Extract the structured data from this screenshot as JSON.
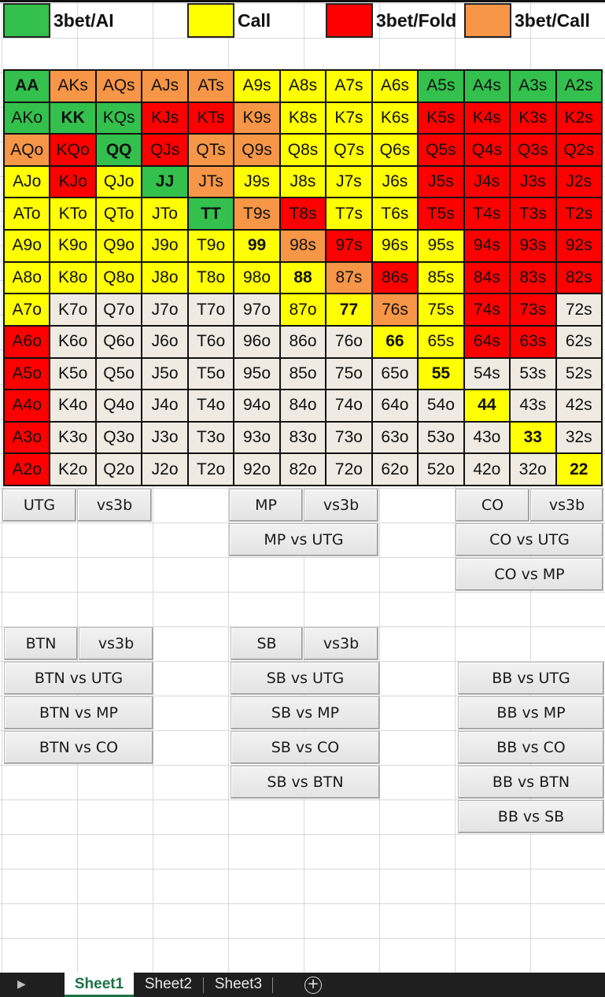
{
  "legend": [
    {
      "label": "3bet/AI",
      "color": "#33c04d"
    },
    {
      "label": "Call",
      "color": "#ffff00"
    },
    {
      "label": "3bet/Fold",
      "color": "#ff0000"
    },
    {
      "label": "3bet/Call",
      "color": "#f79646"
    }
  ],
  "colors": {
    "G": "#33c04d",
    "Y": "#ffff00",
    "R": "#ff0000",
    "O": "#f79646",
    "W": "#efebe2"
  },
  "grid": {
    "rows": [
      [
        "AA",
        "AKs",
        "AQs",
        "AJs",
        "ATs",
        "A9s",
        "A8s",
        "A7s",
        "A6s",
        "A5s",
        "A4s",
        "A3s",
        "A2s"
      ],
      [
        "AKo",
        "KK",
        "KQs",
        "KJs",
        "KTs",
        "K9s",
        "K8s",
        "K7s",
        "K6s",
        "K5s",
        "K4s",
        "K3s",
        "K2s"
      ],
      [
        "AQo",
        "KQo",
        "QQ",
        "QJs",
        "QTs",
        "Q9s",
        "Q8s",
        "Q7s",
        "Q6s",
        "Q5s",
        "Q4s",
        "Q3s",
        "Q2s"
      ],
      [
        "AJo",
        "KJo",
        "QJo",
        "JJ",
        "JTs",
        "J9s",
        "J8s",
        "J7s",
        "J6s",
        "J5s",
        "J4s",
        "J3s",
        "J2s"
      ],
      [
        "ATo",
        "KTo",
        "QTo",
        "JTo",
        "TT",
        "T9s",
        "T8s",
        "T7s",
        "T6s",
        "T5s",
        "T4s",
        "T3s",
        "T2s"
      ],
      [
        "A9o",
        "K9o",
        "Q9o",
        "J9o",
        "T9o",
        "99",
        "98s",
        "97s",
        "96s",
        "95s",
        "94s",
        "93s",
        "92s"
      ],
      [
        "A8o",
        "K8o",
        "Q8o",
        "J8o",
        "T8o",
        "98o",
        "88",
        "87s",
        "86s",
        "85s",
        "84s",
        "83s",
        "82s"
      ],
      [
        "A7o",
        "K7o",
        "Q7o",
        "J7o",
        "T7o",
        "97o",
        "87o",
        "77",
        "76s",
        "75s",
        "74s",
        "73s",
        "72s"
      ],
      [
        "A6o",
        "K6o",
        "Q6o",
        "J6o",
        "T6o",
        "96o",
        "86o",
        "76o",
        "66",
        "65s",
        "64s",
        "63s",
        "62s"
      ],
      [
        "A5o",
        "K5o",
        "Q5o",
        "J5o",
        "T5o",
        "95o",
        "85o",
        "75o",
        "65o",
        "55",
        "54s",
        "53s",
        "52s"
      ],
      [
        "A4o",
        "K4o",
        "Q4o",
        "J4o",
        "T4o",
        "94o",
        "84o",
        "74o",
        "64o",
        "54o",
        "44",
        "43s",
        "42s"
      ],
      [
        "A3o",
        "K3o",
        "Q3o",
        "J3o",
        "T3o",
        "93o",
        "83o",
        "73o",
        "63o",
        "53o",
        "43o",
        "33",
        "32s"
      ],
      [
        "A2o",
        "K2o",
        "Q2o",
        "J2o",
        "T2o",
        "92o",
        "82o",
        "72o",
        "62o",
        "52o",
        "42o",
        "32o",
        "22"
      ]
    ],
    "actions": [
      "GOOOOYYYYGGGG",
      "GGGRROYYYRRRR",
      "ORGROOYYYRRRR",
      "YRYGOYYYYRRRR",
      "YYYYGORYYRRRR",
      "YYYYYYORYYRRR",
      "YYYYYYYORYRRR",
      "YWWWWWYYOYRRW",
      "RWWWWWWWYYRRW",
      "RWWWWWWWWYWWW",
      "RWWWWWWWWWYWW",
      "RWWWWWWWWWWYW",
      "RWWWWWWWWWWWY"
    ]
  },
  "buttons": {
    "utg": "UTG",
    "utg_vs3b": "vs3b",
    "mp": "MP",
    "mp_vs3b": "vs3b",
    "co": "CO",
    "co_vs3b": "vs3b",
    "mp_vs_utg": "MP vs UTG",
    "co_vs_utg": "CO vs UTG",
    "co_vs_mp": "CO vs MP",
    "btn": "BTN",
    "btn_vs3b": "vs3b",
    "sb": "SB",
    "sb_vs3b": "vs3b",
    "btn_vs_utg": "BTN vs UTG",
    "btn_vs_mp": "BTN vs MP",
    "btn_vs_co": "BTN vs CO",
    "sb_vs_utg": "SB vs UTG",
    "sb_vs_mp": "SB vs MP",
    "sb_vs_co": "SB vs CO",
    "sb_vs_btn": "SB vs BTN",
    "bb_vs_utg": "BB vs UTG",
    "bb_vs_mp": "BB vs MP",
    "bb_vs_co": "BB vs CO",
    "bb_vs_btn": "BB vs BTN",
    "bb_vs_sb": "BB vs SB"
  },
  "tabs": [
    "Sheet1",
    "Sheet2",
    "Sheet3"
  ],
  "active_tab": "Sheet1"
}
